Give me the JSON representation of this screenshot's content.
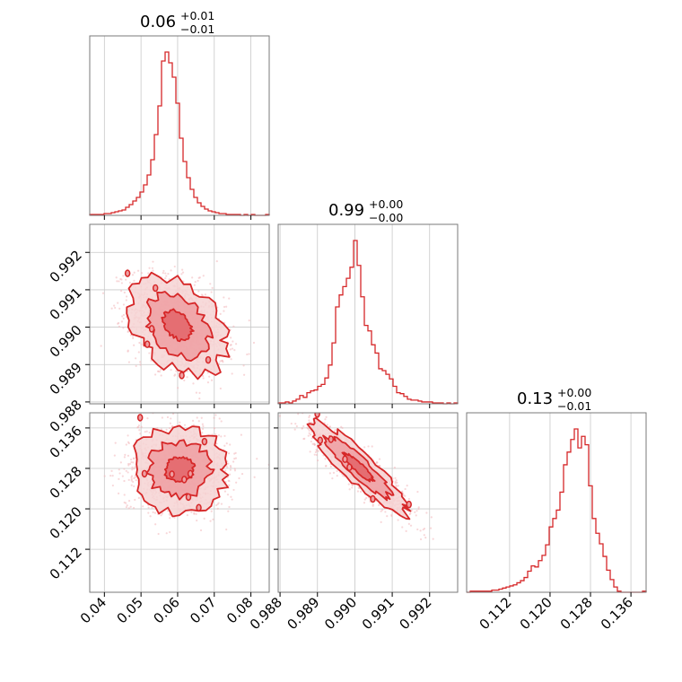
{
  "chart_data": {
    "type": "corner",
    "color": "#d62728",
    "fill_colors": {
      "outer": "#f6d3d4",
      "mid": "#ee9fa2",
      "inner": "#e36469"
    },
    "grid": true,
    "parameters": [
      {
        "id": "p1",
        "range": [
          0.036,
          0.085
        ],
        "ticks": [
          0.04,
          0.05,
          0.06,
          0.07,
          0.08
        ],
        "tick_labels": [
          "0.04",
          "0.05",
          "0.06",
          "0.07",
          "0.08"
        ]
      },
      {
        "id": "p2",
        "range": [
          0.98795,
          0.99275
        ],
        "ticks": [
          0.988,
          0.989,
          0.99,
          0.991,
          0.992
        ],
        "tick_labels": [
          "0.988",
          "0.989",
          "0.990",
          "0.991",
          "0.992"
        ]
      },
      {
        "id": "p3",
        "range": [
          0.1035,
          0.139
        ],
        "ticks": [
          0.112,
          0.12,
          0.128,
          0.136
        ],
        "tick_labels": [
          "0.112",
          "0.120",
          "0.128",
          "0.136"
        ]
      }
    ],
    "titles": [
      {
        "main": "0.06",
        "upper": "+0.01",
        "lower": "−0.01"
      },
      {
        "main": "0.99",
        "upper": "+0.00",
        "lower": "−0.00"
      },
      {
        "main": "0.13",
        "upper": "+0.00",
        "lower": "−0.01"
      }
    ],
    "histograms": [
      {
        "parameter": "p1",
        "bin_start": 0.036,
        "bin_width": 0.00098,
        "counts": [
          1,
          1,
          1,
          1,
          2,
          2,
          3,
          4,
          5,
          6,
          9,
          12,
          16,
          20,
          26,
          34,
          45,
          62,
          90,
          122,
          172,
          182,
          170,
          154,
          125,
          86,
          60,
          42,
          29,
          20,
          14,
          10,
          7,
          5,
          4,
          3,
          2,
          2,
          1,
          1,
          1,
          1,
          0,
          1,
          0,
          1,
          0,
          0,
          0,
          1
        ]
      },
      {
        "parameter": "p2",
        "bin_start": 0.98795,
        "bin_width": 9.6e-05,
        "counts": [
          1,
          1,
          2,
          1,
          3,
          5,
          9,
          7,
          12,
          14,
          15,
          19,
          21,
          28,
          42,
          66,
          105,
          118,
          127,
          136,
          148,
          177,
          150,
          116,
          85,
          79,
          64,
          55,
          38,
          36,
          32,
          27,
          19,
          12,
          11,
          8,
          5,
          4,
          4,
          3,
          2,
          2,
          2,
          1,
          1,
          1,
          0,
          1,
          0,
          1
        ]
      },
      {
        "parameter": "p3",
        "bin_start": 0.1035,
        "bin_width": 0.00071,
        "counts": [
          0,
          1,
          1,
          1,
          1,
          1,
          1,
          2,
          2,
          3,
          4,
          5,
          6,
          7,
          9,
          11,
          14,
          20,
          25,
          24,
          30,
          35,
          45,
          62,
          70,
          78,
          95,
          121,
          133,
          145,
          155,
          137,
          148,
          140,
          101,
          70,
          56,
          46,
          34,
          21,
          12,
          5,
          1,
          0,
          0,
          0,
          0,
          0,
          0,
          1
        ]
      }
    ],
    "scatter_2d": [
      {
        "x": "p1",
        "y": "p2",
        "x_center": 0.06,
        "y_center": 0.99005,
        "x_sd": 0.0065,
        "y_sd": 0.00065,
        "correlation": -0.35,
        "points": 1400
      },
      {
        "x": "p1",
        "y": "p3",
        "x_center": 0.0605,
        "y_center": 0.1278,
        "x_sd": 0.0065,
        "y_sd": 0.0042,
        "correlation": 0.0,
        "points": 1400
      },
      {
        "x": "p2",
        "y": "p3",
        "x_center": 0.9901,
        "y_center": 0.1282,
        "x_sd": 0.00065,
        "y_sd": 0.0045,
        "correlation": -0.9,
        "points": 1400
      }
    ],
    "contour_levels": [
      "outer",
      "mid",
      "inner"
    ]
  }
}
